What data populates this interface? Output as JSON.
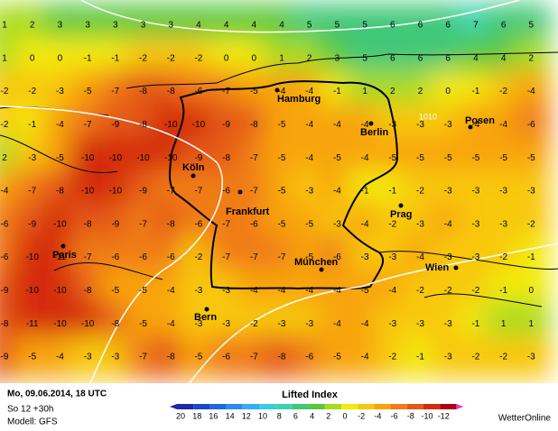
{
  "map": {
    "grid": [
      [
        1,
        2,
        3,
        3,
        3,
        3,
        3,
        4,
        4,
        4,
        4,
        5,
        5,
        5,
        6,
        6,
        6,
        7,
        6,
        5
      ],
      [
        1,
        0,
        0,
        -1,
        -1,
        -2,
        -2,
        -2,
        0,
        0,
        1,
        2,
        3,
        5,
        6,
        6,
        6,
        4,
        4,
        2
      ],
      [
        -2,
        -2,
        -3,
        -5,
        -7,
        -8,
        -8,
        -6,
        -7,
        -5,
        -4,
        -4,
        -1,
        1,
        2,
        2,
        0,
        -1,
        -2,
        -4
      ],
      [
        -2,
        -1,
        -4,
        -7,
        -9,
        -8,
        -10,
        -10,
        -9,
        -8,
        -5,
        -4,
        -4,
        -4,
        -3,
        -3,
        -3,
        -4,
        -4,
        -6
      ],
      [
        2,
        -3,
        -5,
        -10,
        -10,
        -10,
        -10,
        -9,
        -8,
        -7,
        -5,
        -4,
        -5,
        -4,
        -5,
        -5,
        -5,
        -5,
        -5,
        -5
      ],
      [
        -4,
        -7,
        -8,
        -10,
        -10,
        -9,
        -7,
        -7,
        -6,
        -7,
        -5,
        -3,
        -4,
        -1,
        -1,
        -2,
        -3,
        -3,
        -3,
        -3
      ],
      [
        -6,
        -9,
        -10,
        -8,
        -9,
        -7,
        -8,
        -6,
        -7,
        -6,
        -5,
        -5,
        -3,
        -4,
        -2,
        -3,
        -4,
        -3,
        -3,
        -2
      ],
      [
        -6,
        -10,
        -11,
        -7,
        -6,
        -6,
        -6,
        -2,
        -7,
        -7,
        -7,
        -5,
        -6,
        -3,
        -3,
        -4,
        -3,
        -3,
        -2,
        -1
      ],
      [
        -9,
        -10,
        -10,
        -8,
        -5,
        -5,
        -4,
        -3,
        -3,
        -4,
        -4,
        -4,
        -4,
        -5,
        -4,
        -2,
        -2,
        -2,
        -1,
        0
      ],
      [
        -8,
        -11,
        -10,
        -10,
        -8,
        -5,
        -4,
        -3,
        -3,
        -2,
        -3,
        -3,
        -4,
        -4,
        -3,
        -3,
        -3,
        -1,
        1,
        1
      ],
      [
        -9,
        -5,
        -4,
        -3,
        -3,
        -7,
        -8,
        -5,
        -6,
        -7,
        -8,
        -6,
        -5,
        -4,
        -2,
        -1,
        -3,
        -2,
        -2,
        -3
      ]
    ],
    "cities": [
      "Hamburg",
      "Berlin",
      "Posen",
      "Köln",
      "Frankfurt",
      "Prag",
      "Paris",
      "München",
      "Wien",
      "Bern"
    ],
    "isobar_label": "1010"
  },
  "footer": {
    "datetime": "Mo, 09.06.2014, 18 UTC",
    "run": "So 12 +30h",
    "model": "Modell: GFS",
    "brand": "WetterOnline"
  },
  "legend": {
    "title": "Lifted Index",
    "steps": [
      {
        "value": 20,
        "color": "#1a2aa8"
      },
      {
        "value": 18,
        "color": "#1c48c8"
      },
      {
        "value": 16,
        "color": "#1e68e0"
      },
      {
        "value": 14,
        "color": "#2a8cec"
      },
      {
        "value": 12,
        "color": "#34aef0"
      },
      {
        "value": 10,
        "color": "#38cce0"
      },
      {
        "value": 8,
        "color": "#3cd4b0"
      },
      {
        "value": 6,
        "color": "#40c878"
      },
      {
        "value": 4,
        "color": "#58c83c"
      },
      {
        "value": 2,
        "color": "#a8dc20"
      },
      {
        "value": 0,
        "color": "#f2ea10"
      },
      {
        "value": -2,
        "color": "#f8c808"
      },
      {
        "value": -4,
        "color": "#f8a408"
      },
      {
        "value": -6,
        "color": "#f07c18"
      },
      {
        "value": -8,
        "color": "#e45818"
      },
      {
        "value": -10,
        "color": "#d42c10"
      },
      {
        "value": -12,
        "color": "#b00010"
      }
    ]
  }
}
